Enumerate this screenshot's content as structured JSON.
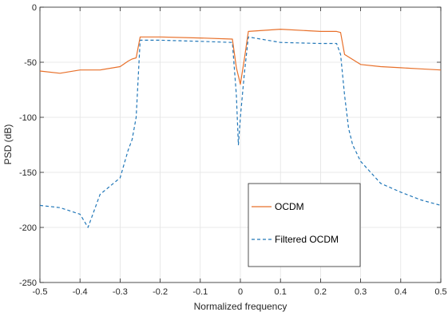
{
  "colors": {
    "ocdm": "#e8702a",
    "filtered": "#2177b8",
    "grid": "#e3e3e3",
    "axis": "#262626"
  },
  "chart_data": {
    "type": "line",
    "title": "",
    "xlabel": "Normalized frequency",
    "ylabel": "PSD (dB)",
    "xlim": [
      -0.5,
      0.5
    ],
    "ylim": [
      -250,
      0
    ],
    "xticks": [
      -0.5,
      -0.4,
      -0.3,
      -0.2,
      -0.1,
      0,
      0.1,
      0.2,
      0.3,
      0.4,
      0.5
    ],
    "xtick_labels": [
      "-0.5",
      "-0.4",
      "-0.3",
      "-0.2",
      "-0.1",
      "0",
      "0.1",
      "0.2",
      "0.3",
      "0.4",
      "0.5"
    ],
    "yticks": [
      0,
      -50,
      -100,
      -150,
      -200,
      -250
    ],
    "ytick_labels": [
      "0",
      "-50",
      "-100",
      "-150",
      "-200",
      "-250"
    ],
    "grid": true,
    "legend": {
      "placement": "lower-right",
      "entries": [
        "OCDM",
        "Filtered OCDM"
      ]
    },
    "series": [
      {
        "name": "OCDM",
        "style": "solid",
        "color": "#e8702a",
        "x": [
          -0.5,
          -0.45,
          -0.4,
          -0.35,
          -0.3,
          -0.28,
          -0.27,
          -0.26,
          -0.25,
          -0.2,
          -0.1,
          -0.02,
          -0.01,
          0.0,
          0.01,
          0.02,
          0.1,
          0.2,
          0.24,
          0.25,
          0.26,
          0.3,
          0.35,
          0.4,
          0.45,
          0.5
        ],
        "y": [
          -58,
          -60,
          -57,
          -57,
          -54,
          -49,
          -47,
          -46,
          -27,
          -27,
          -28,
          -29,
          -55,
          -70,
          -47,
          -22,
          -20,
          -22,
          -22,
          -23,
          -43,
          -52,
          -54,
          -55,
          -56,
          -57
        ]
      },
      {
        "name": "Filtered OCDM",
        "style": "dashed",
        "color": "#2177b8",
        "x": [
          -0.5,
          -0.45,
          -0.4,
          -0.38,
          -0.35,
          -0.3,
          -0.28,
          -0.27,
          -0.26,
          -0.25,
          -0.2,
          -0.1,
          -0.02,
          -0.01,
          -0.005,
          0.0,
          0.01,
          0.02,
          0.1,
          0.2,
          0.24,
          0.25,
          0.26,
          0.27,
          0.28,
          0.3,
          0.35,
          0.4,
          0.45,
          0.5
        ],
        "y": [
          -180,
          -182,
          -188,
          -200,
          -170,
          -155,
          -130,
          -120,
          -100,
          -30,
          -30,
          -31,
          -32,
          -80,
          -125,
          -100,
          -60,
          -27,
          -32,
          -33,
          -33,
          -43,
          -80,
          -110,
          -125,
          -140,
          -160,
          -168,
          -175,
          -180
        ]
      }
    ]
  }
}
